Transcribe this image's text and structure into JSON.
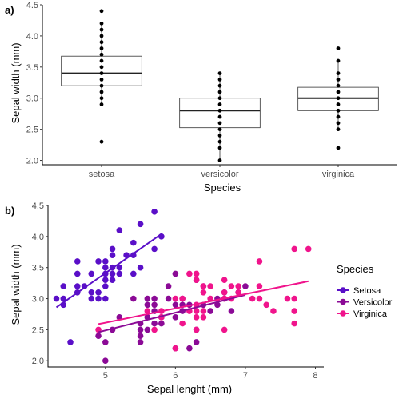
{
  "chart_data": [
    {
      "type": "box",
      "tag": "a)",
      "categories": [
        "setosa",
        "versicolor",
        "virginica"
      ],
      "xlabel": "Species",
      "ylabel": "Sepal width (mm)",
      "ylim": [
        1.93,
        4.5
      ],
      "yticks": [
        2.0,
        2.5,
        3.0,
        3.5,
        4.0,
        4.5
      ],
      "ytick_labels": [
        "2.0",
        "2.5",
        "3.0",
        "3.5",
        "4.0",
        "4.5"
      ],
      "boxes": [
        {
          "category": "setosa",
          "q1": 3.2,
          "median": 3.4,
          "q3": 3.675,
          "whisker_low": 2.9,
          "whisker_high": 4.2
        },
        {
          "category": "versicolor",
          "q1": 2.525,
          "median": 2.8,
          "q3": 3.0,
          "whisker_low": 2.0,
          "whisker_high": 3.4
        },
        {
          "category": "virginica",
          "q1": 2.8,
          "median": 3.0,
          "q3": 3.175,
          "whisker_low": 2.5,
          "whisker_high": 3.6
        }
      ],
      "points": [
        {
          "category": "setosa",
          "values": [
            2.3,
            2.9,
            3.0,
            3.1,
            3.2,
            3.3,
            3.4,
            3.5,
            3.6,
            3.7,
            3.8,
            3.9,
            4.0,
            4.1,
            4.2,
            4.4
          ]
        },
        {
          "category": "versicolor",
          "values": [
            2.0,
            2.2,
            2.3,
            2.4,
            2.5,
            2.6,
            2.7,
            2.8,
            2.9,
            3.0,
            3.1,
            3.2,
            3.3,
            3.4
          ]
        },
        {
          "category": "virginica",
          "values": [
            2.2,
            2.5,
            2.6,
            2.7,
            2.8,
            2.9,
            3.0,
            3.1,
            3.2,
            3.3,
            3.4,
            3.6,
            3.8
          ]
        }
      ]
    },
    {
      "type": "scatter",
      "tag": "b)",
      "xlabel": "Sepal lenght (mm)",
      "ylabel": "Sepal width (mm)",
      "xlim": [
        4.18,
        8.12
      ],
      "ylim": [
        1.9,
        4.5
      ],
      "xticks": [
        5,
        6,
        7,
        8
      ],
      "xtick_labels": [
        "5",
        "6",
        "7",
        "8"
      ],
      "yticks": [
        2.0,
        2.5,
        3.0,
        3.5,
        4.0,
        4.5
      ],
      "ytick_labels": [
        "2.0",
        "2.5",
        "3.0",
        "3.5",
        "4.0",
        "4.5"
      ],
      "legend": {
        "title": "Species",
        "position": "right"
      },
      "series": [
        {
          "name": "Setosa",
          "color": "#5a0fc8",
          "fit": {
            "x": [
              4.3,
              5.8
            ],
            "y": [
              2.86,
              4.04
            ]
          },
          "points": [
            [
              4.3,
              3.0
            ],
            [
              4.4,
              2.9
            ],
            [
              4.4,
              3.0
            ],
            [
              4.4,
              3.2
            ],
            [
              4.5,
              2.3
            ],
            [
              4.6,
              3.1
            ],
            [
              4.6,
              3.2
            ],
            [
              4.6,
              3.4
            ],
            [
              4.6,
              3.6
            ],
            [
              4.7,
              3.2
            ],
            [
              4.8,
              3.0
            ],
            [
              4.8,
              3.1
            ],
            [
              4.8,
              3.4
            ],
            [
              4.9,
              3.0
            ],
            [
              4.9,
              3.1
            ],
            [
              4.9,
              3.6
            ],
            [
              5.0,
              3.0
            ],
            [
              5.0,
              3.2
            ],
            [
              5.0,
              3.3
            ],
            [
              5.0,
              3.4
            ],
            [
              5.0,
              3.5
            ],
            [
              5.0,
              3.6
            ],
            [
              5.1,
              3.3
            ],
            [
              5.1,
              3.4
            ],
            [
              5.1,
              3.5
            ],
            [
              5.1,
              3.7
            ],
            [
              5.1,
              3.8
            ],
            [
              5.2,
              3.4
            ],
            [
              5.2,
              3.5
            ],
            [
              5.2,
              4.1
            ],
            [
              5.3,
              3.7
            ],
            [
              5.4,
              3.4
            ],
            [
              5.4,
              3.7
            ],
            [
              5.4,
              3.9
            ],
            [
              5.5,
              3.5
            ],
            [
              5.5,
              4.2
            ],
            [
              5.7,
              3.8
            ],
            [
              5.7,
              4.4
            ],
            [
              5.8,
              4.0
            ]
          ]
        },
        {
          "name": "Versicolor",
          "color": "#8b0a96",
          "fit": {
            "x": [
              4.9,
              7.0
            ],
            "y": [
              2.46,
              3.06
            ]
          },
          "points": [
            [
              4.9,
              2.4
            ],
            [
              5.0,
              2.0
            ],
            [
              5.0,
              2.3
            ],
            [
              5.1,
              2.5
            ],
            [
              5.2,
              2.7
            ],
            [
              5.4,
              3.0
            ],
            [
              5.5,
              2.3
            ],
            [
              5.5,
              2.4
            ],
            [
              5.5,
              2.5
            ],
            [
              5.5,
              2.6
            ],
            [
              5.6,
              2.5
            ],
            [
              5.6,
              2.7
            ],
            [
              5.6,
              2.9
            ],
            [
              5.6,
              3.0
            ],
            [
              5.7,
              2.6
            ],
            [
              5.7,
              2.8
            ],
            [
              5.7,
              2.9
            ],
            [
              5.7,
              3.0
            ],
            [
              5.8,
              2.6
            ],
            [
              5.8,
              2.7
            ],
            [
              5.9,
              3.0
            ],
            [
              5.9,
              3.2
            ],
            [
              6.0,
              2.2
            ],
            [
              6.0,
              2.7
            ],
            [
              6.0,
              2.9
            ],
            [
              6.0,
              3.4
            ],
            [
              6.1,
              2.8
            ],
            [
              6.1,
              2.9
            ],
            [
              6.1,
              3.0
            ],
            [
              6.2,
              2.2
            ],
            [
              6.2,
              2.9
            ],
            [
              6.3,
              2.3
            ],
            [
              6.3,
              2.5
            ],
            [
              6.3,
              3.3
            ],
            [
              6.4,
              2.9
            ],
            [
              6.4,
              3.2
            ],
            [
              6.5,
              2.8
            ],
            [
              6.6,
              2.9
            ],
            [
              6.6,
              3.0
            ],
            [
              6.7,
              3.0
            ],
            [
              6.7,
              3.1
            ],
            [
              6.8,
              2.8
            ],
            [
              6.9,
              3.1
            ],
            [
              7.0,
              3.2
            ]
          ]
        },
        {
          "name": "Virginica",
          "color": "#f0148c",
          "fit": {
            "x": [
              4.9,
              7.9
            ],
            "y": [
              2.59,
              3.28
            ]
          },
          "points": [
            [
              4.9,
              2.5
            ],
            [
              5.6,
              2.8
            ],
            [
              5.7,
              2.5
            ],
            [
              5.8,
              2.7
            ],
            [
              5.8,
              2.8
            ],
            [
              6.0,
              2.2
            ],
            [
              6.0,
              3.0
            ],
            [
              6.1,
              2.6
            ],
            [
              6.1,
              3.0
            ],
            [
              6.2,
              2.8
            ],
            [
              6.2,
              3.4
            ],
            [
              6.3,
              2.5
            ],
            [
              6.3,
              2.7
            ],
            [
              6.3,
              2.8
            ],
            [
              6.3,
              2.9
            ],
            [
              6.3,
              3.3
            ],
            [
              6.3,
              3.4
            ],
            [
              6.4,
              2.7
            ],
            [
              6.4,
              2.8
            ],
            [
              6.4,
              3.1
            ],
            [
              6.4,
              3.2
            ],
            [
              6.5,
              3.0
            ],
            [
              6.5,
              3.2
            ],
            [
              6.7,
              2.5
            ],
            [
              6.7,
              3.0
            ],
            [
              6.7,
              3.1
            ],
            [
              6.7,
              3.3
            ],
            [
              6.8,
              3.0
            ],
            [
              6.8,
              3.2
            ],
            [
              6.9,
              3.1
            ],
            [
              6.9,
              3.2
            ],
            [
              7.1,
              3.0
            ],
            [
              7.2,
              3.0
            ],
            [
              7.2,
              3.2
            ],
            [
              7.2,
              3.6
            ],
            [
              7.3,
              2.9
            ],
            [
              7.4,
              2.8
            ],
            [
              7.6,
              3.0
            ],
            [
              7.7,
              2.6
            ],
            [
              7.7,
              2.8
            ],
            [
              7.7,
              3.0
            ],
            [
              7.7,
              3.8
            ],
            [
              7.9,
              3.8
            ]
          ]
        }
      ]
    }
  ]
}
